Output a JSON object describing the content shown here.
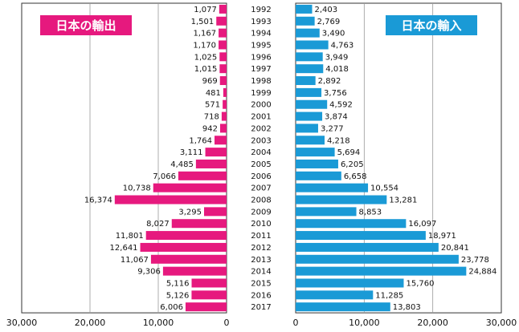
{
  "chart_data": {
    "type": "bar",
    "orientation": "horizontal-butterfly",
    "categories": [
      "1992",
      "1993",
      "1994",
      "1995",
      "1996",
      "1997",
      "1998",
      "1999",
      "2000",
      "2001",
      "2002",
      "2003",
      "2004",
      "2005",
      "2006",
      "2007",
      "2008",
      "2009",
      "2010",
      "2011",
      "2012",
      "2013",
      "2014",
      "2015",
      "2016",
      "2017"
    ],
    "series": [
      {
        "name": "日本の輸出",
        "color": "#e6197e",
        "values": [
          1077,
          1501,
          1167,
          1170,
          1025,
          1015,
          969,
          481,
          571,
          718,
          942,
          1764,
          3111,
          4485,
          7066,
          10738,
          16374,
          3295,
          8027,
          11801,
          12641,
          11067,
          9306,
          5116,
          5126,
          6006
        ],
        "labels": [
          "1,077",
          "1,501",
          "1,167",
          "1,170",
          "1,025",
          "1,015",
          "969",
          "481",
          "571",
          "718",
          "942",
          "1,764",
          "3,111",
          "4,485",
          "7,066",
          "10,738",
          "16,374",
          "3,295",
          "8,027",
          "11,801",
          "12,641",
          "11,067",
          "9,306",
          "5,116",
          "5,126",
          "6,006"
        ]
      },
      {
        "name": "日本の輸入",
        "color": "#1a9ad6",
        "values": [
          2403,
          2769,
          3490,
          4763,
          3949,
          4018,
          2892,
          3756,
          4592,
          3874,
          3277,
          4218,
          5694,
          6205,
          6658,
          10554,
          13281,
          8853,
          16097,
          18971,
          20841,
          23778,
          24884,
          15760,
          11285,
          13803
        ],
        "labels": [
          "2,403",
          "2,769",
          "3,490",
          "4,763",
          "3,949",
          "4,018",
          "2,892",
          "3,756",
          "4,592",
          "3,874",
          "3,277",
          "4,218",
          "5,694",
          "6,205",
          "6,658",
          "10,554",
          "13,281",
          "8,853",
          "16,097",
          "18,971",
          "20,841",
          "23,778",
          "24,884",
          "15,760",
          "11,285",
          "13,803"
        ]
      }
    ],
    "left_axis": {
      "range": [
        30000,
        0
      ],
      "ticks": [
        30000,
        20000,
        10000,
        0
      ],
      "tick_labels": [
        "30,000",
        "20,000",
        "10,000",
        "0"
      ]
    },
    "right_axis": {
      "range": [
        0,
        30000
      ],
      "ticks": [
        0,
        10000,
        20000,
        30000
      ],
      "tick_labels": [
        "0",
        "10,000",
        "20,000",
        "30,000"
      ]
    },
    "grid": true,
    "legend": [
      {
        "label": "日本の輸出",
        "position": "top-left",
        "color": "#e6197e"
      },
      {
        "label": "日本の輸入",
        "position": "top-right",
        "color": "#1a9ad6"
      }
    ]
  }
}
